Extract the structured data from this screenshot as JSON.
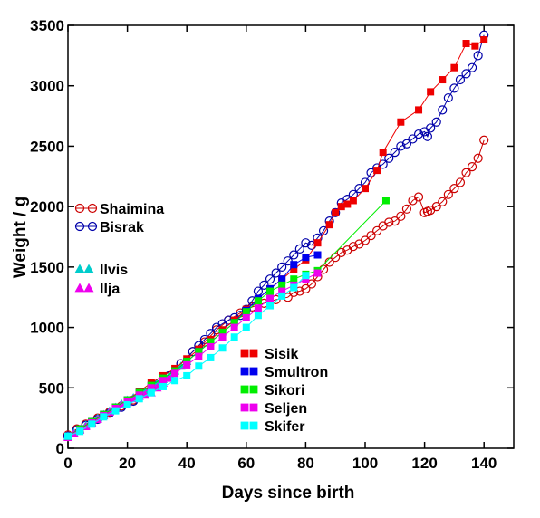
{
  "chart_data": {
    "type": "scatter",
    "xlabel": "Days since birth",
    "ylabel": "Weight / g",
    "xlim": [
      0,
      150
    ],
    "ylim": [
      0,
      3500
    ],
    "x_ticks": [
      0,
      20,
      40,
      60,
      80,
      100,
      120,
      140
    ],
    "y_ticks": [
      0,
      500,
      1000,
      1500,
      2000,
      2500,
      3000,
      3500
    ],
    "grid": false,
    "series": [
      {
        "name": "Shaimina",
        "marker": "open-circle",
        "color": "#cc0000",
        "x": [
          0,
          3,
          6,
          10,
          14,
          18,
          22,
          26,
          30,
          34,
          38,
          42,
          46,
          50,
          54,
          58,
          62,
          66,
          70,
          74,
          76,
          78,
          80,
          82,
          84,
          86,
          88,
          90,
          92,
          94,
          96,
          98,
          100,
          102,
          104,
          106,
          108,
          110,
          112,
          114,
          116,
          118,
          120,
          121,
          122,
          124,
          126,
          128,
          130,
          132,
          134,
          136,
          138,
          140
        ],
        "y": [
          110,
          160,
          200,
          250,
          300,
          350,
          400,
          460,
          520,
          600,
          700,
          800,
          880,
          980,
          1060,
          1120,
          1170,
          1200,
          1230,
          1250,
          1290,
          1300,
          1320,
          1360,
          1420,
          1480,
          1540,
          1580,
          1620,
          1640,
          1670,
          1690,
          1720,
          1760,
          1800,
          1840,
          1870,
          1880,
          1920,
          1980,
          2050,
          2080,
          1950,
          1960,
          1970,
          2000,
          2040,
          2100,
          2150,
          2200,
          2280,
          2330,
          2400,
          2550
        ]
      },
      {
        "name": "Bisrak",
        "marker": "open-circle",
        "color": "#0000aa",
        "x": [
          0,
          3,
          6,
          10,
          14,
          18,
          22,
          26,
          30,
          34,
          38,
          42,
          44,
          46,
          48,
          50,
          52,
          54,
          56,
          58,
          60,
          62,
          64,
          66,
          68,
          70,
          72,
          74,
          76,
          78,
          80,
          82,
          84,
          86,
          88,
          90,
          92,
          94,
          96,
          98,
          100,
          102,
          104,
          106,
          108,
          110,
          112,
          114,
          116,
          118,
          120,
          121,
          122,
          124,
          126,
          128,
          130,
          132,
          134,
          136,
          138,
          140
        ],
        "y": [
          100,
          150,
          190,
          240,
          290,
          340,
          390,
          450,
          520,
          600,
          700,
          800,
          850,
          900,
          950,
          1000,
          1030,
          1060,
          1080,
          1100,
          1150,
          1220,
          1300,
          1350,
          1400,
          1450,
          1500,
          1550,
          1600,
          1650,
          1700,
          1680,
          1740,
          1800,
          1880,
          1950,
          2030,
          2060,
          2100,
          2150,
          2200,
          2280,
          2320,
          2350,
          2400,
          2450,
          2500,
          2520,
          2560,
          2600,
          2620,
          2580,
          2650,
          2700,
          2800,
          2900,
          2980,
          3050,
          3100,
          3150,
          3250,
          3420
        ]
      },
      {
        "name": "Ilvis",
        "marker": "filled-triangle",
        "color": "#00cccc",
        "x": [
          0,
          2,
          4,
          6,
          8,
          10,
          12,
          14,
          16,
          18,
          20,
          22,
          24,
          26,
          28,
          30,
          32,
          34,
          36,
          38,
          40
        ],
        "y": [
          100,
          130,
          160,
          190,
          220,
          250,
          280,
          310,
          340,
          370,
          400,
          420,
          450,
          470,
          500,
          540,
          570,
          600,
          640,
          680,
          720
        ]
      },
      {
        "name": "Ilja",
        "marker": "filled-triangle",
        "color": "#ee00ee",
        "x": [
          0,
          2,
          4,
          6,
          8,
          10,
          12,
          14,
          16,
          18,
          20,
          22,
          24,
          26,
          28,
          30,
          32,
          34
        ],
        "y": [
          90,
          120,
          150,
          180,
          210,
          240,
          270,
          300,
          330,
          360,
          380,
          410,
          430,
          440,
          460,
          500,
          540,
          580
        ]
      },
      {
        "name": "Sisik",
        "marker": "filled-square",
        "color": "#ee0000",
        "x": [
          0,
          4,
          8,
          12,
          16,
          20,
          24,
          28,
          32,
          36,
          40,
          44,
          48,
          52,
          56,
          60,
          64,
          68,
          72,
          76,
          80,
          84,
          88,
          90,
          92,
          94,
          96,
          100,
          104,
          106,
          112,
          118,
          122,
          126,
          130,
          134,
          137,
          140
        ],
        "y": [
          100,
          160,
          220,
          280,
          340,
          400,
          470,
          540,
          600,
          660,
          740,
          820,
          900,
          980,
          1060,
          1150,
          1240,
          1320,
          1400,
          1480,
          1560,
          1700,
          1850,
          1950,
          2000,
          2020,
          2050,
          2150,
          2300,
          2450,
          2700,
          2800,
          2950,
          3050,
          3150,
          3350,
          3330,
          3380
        ]
      },
      {
        "name": "Smultron",
        "marker": "filled-square",
        "color": "#0000ee",
        "x": [
          0,
          4,
          8,
          12,
          16,
          20,
          24,
          28,
          32,
          36,
          40,
          44,
          48,
          52,
          56,
          60,
          64,
          68,
          72,
          76,
          80,
          84
        ],
        "y": [
          100,
          160,
          220,
          280,
          340,
          400,
          460,
          520,
          580,
          640,
          720,
          800,
          880,
          960,
          1040,
          1140,
          1240,
          1320,
          1400,
          1520,
          1580,
          1600
        ]
      },
      {
        "name": "Sikori",
        "marker": "filled-square",
        "color": "#00ee00",
        "x": [
          0,
          4,
          8,
          12,
          16,
          20,
          24,
          28,
          32,
          36,
          40,
          44,
          48,
          52,
          56,
          60,
          64,
          68,
          72,
          76,
          80,
          84,
          107
        ],
        "y": [
          100,
          160,
          220,
          280,
          340,
          400,
          460,
          520,
          580,
          640,
          720,
          800,
          880,
          960,
          1040,
          1130,
          1220,
          1300,
          1350,
          1400,
          1440,
          1470,
          2050
        ]
      },
      {
        "name": "Seljen",
        "marker": "filled-square",
        "color": "#ee00ee",
        "x": [
          0,
          4,
          8,
          12,
          16,
          20,
          24,
          28,
          32,
          36,
          40,
          44,
          48,
          52,
          56,
          60,
          64,
          68,
          72,
          76,
          80,
          84
        ],
        "y": [
          100,
          150,
          210,
          270,
          330,
          390,
          440,
          500,
          560,
          620,
          690,
          760,
          840,
          920,
          1000,
          1080,
          1160,
          1240,
          1300,
          1350,
          1400,
          1450
        ]
      },
      {
        "name": "Skifer",
        "marker": "filled-square",
        "color": "#00ffff",
        "x": [
          0,
          4,
          8,
          12,
          16,
          20,
          24,
          28,
          32,
          36,
          40,
          44,
          48,
          52,
          56,
          60,
          64,
          68,
          72,
          76,
          80
        ],
        "y": [
          100,
          140,
          200,
          260,
          310,
          360,
          410,
          460,
          510,
          560,
          600,
          680,
          750,
          830,
          920,
          1000,
          1100,
          1180,
          1260,
          1330,
          1430
        ]
      }
    ],
    "legend": [
      {
        "group": "upper",
        "entries": [
          "Shaimina",
          "Bisrak"
        ]
      },
      {
        "group": "middle",
        "entries": [
          "Ilvis",
          "Ilja"
        ]
      },
      {
        "group": "lower",
        "entries": [
          "Sisik",
          "Smultron",
          "Sikori",
          "Seljen",
          "Skifer"
        ]
      }
    ]
  }
}
